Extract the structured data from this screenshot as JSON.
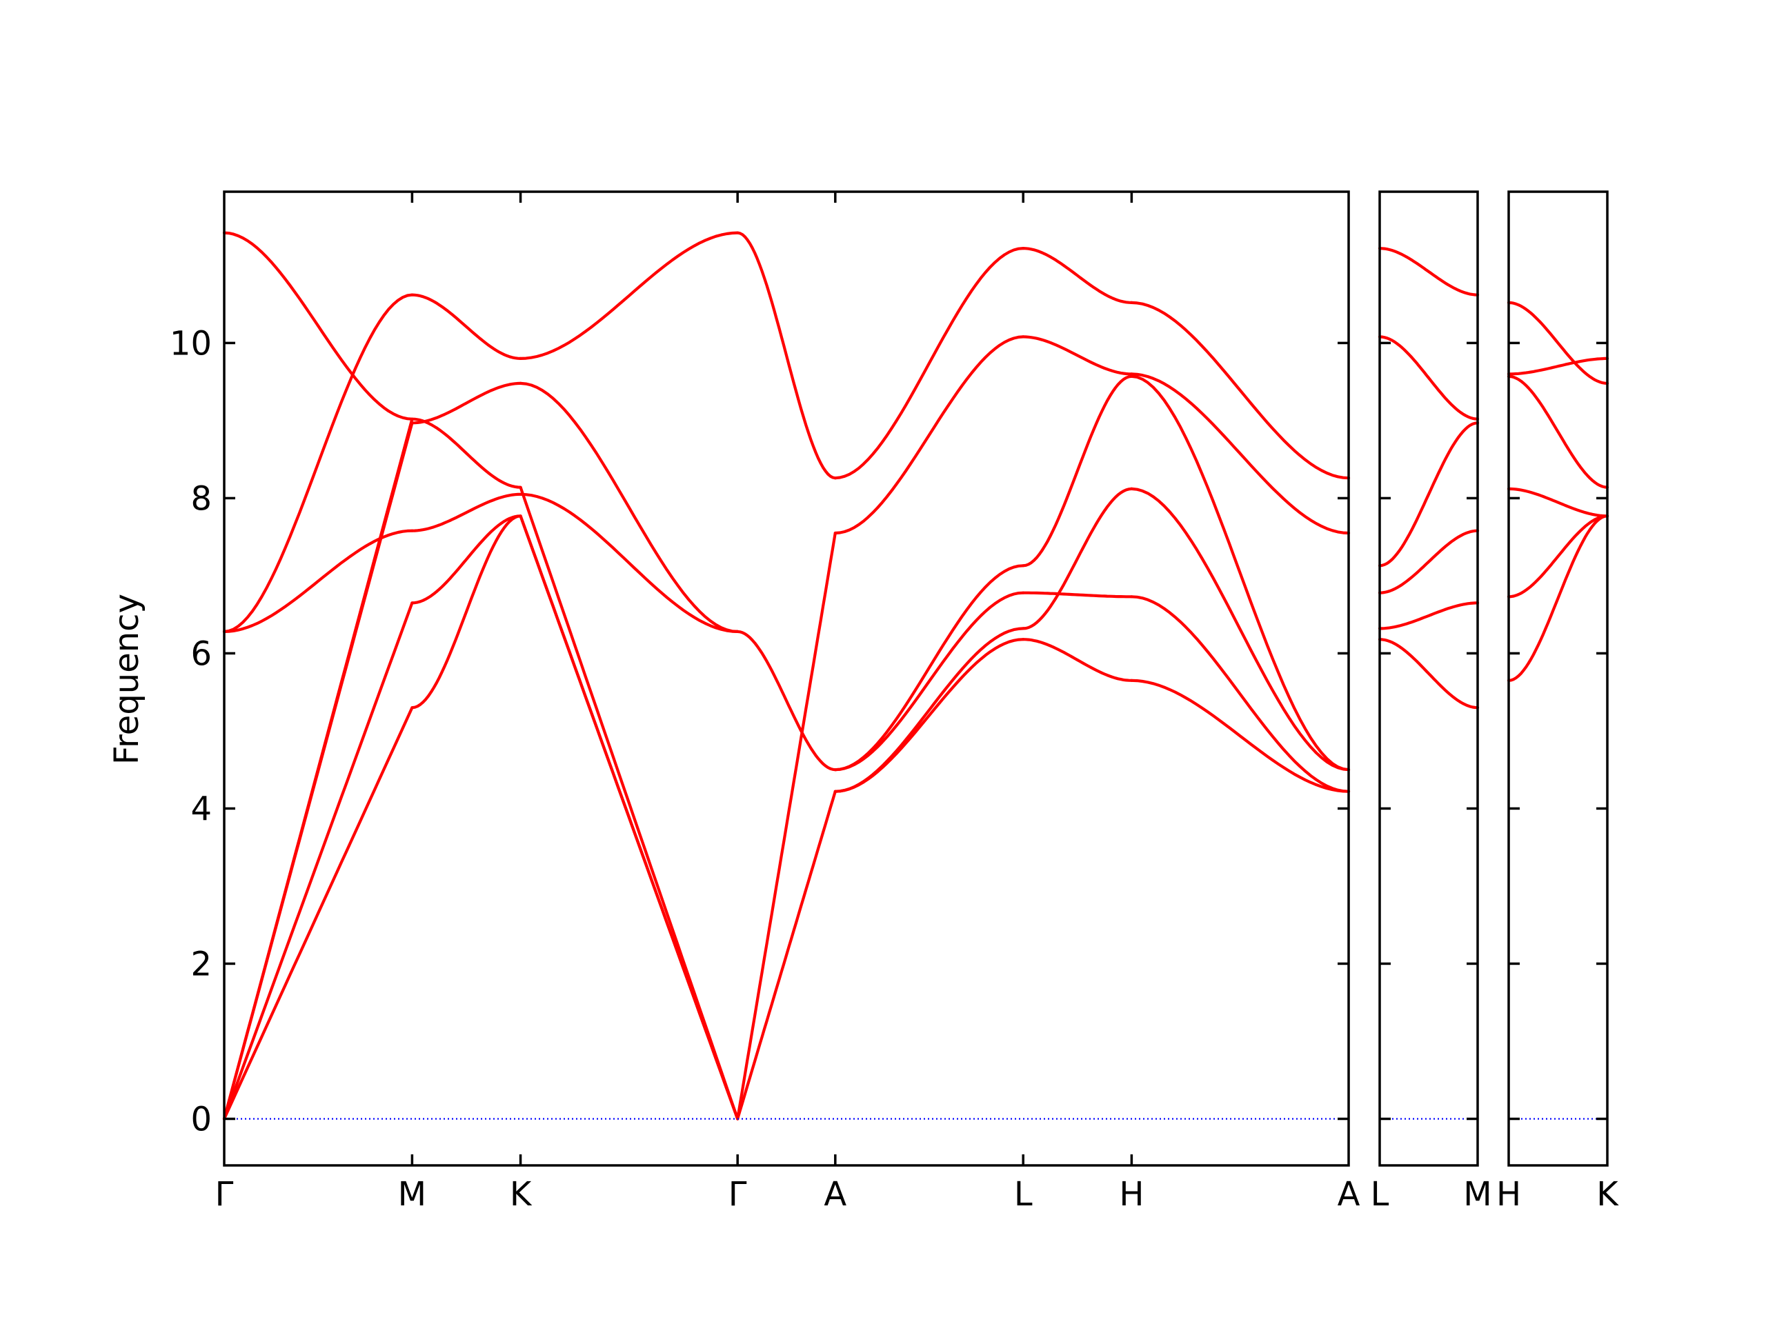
{
  "chart_data": {
    "type": "line",
    "ylabel": "Frequency",
    "ylim": [
      -0.6,
      11.95
    ],
    "yticks": [
      0,
      2,
      4,
      6,
      8,
      10
    ],
    "grid": false,
    "band_color": "#ff0000",
    "zero_line_color": "#0000ff",
    "panels": [
      {
        "path_labels": [
          "Γ",
          "M",
          "K",
          "Γ",
          "A",
          "L",
          "H",
          "A"
        ],
        "segments": [
          {
            "from": "Γ",
            "to": "M",
            "length": 1.0,
            "bands": [
              [
                0,
                5.3
              ],
              [
                0,
                6.65
              ],
              [
                0,
                8.97
              ],
              [
                0,
                9.02
              ],
              [
                6.28,
                7.58
              ],
              [
                6.28,
                10.62
              ],
              [
                11.42,
                9.02
              ]
            ]
          },
          {
            "from": "M",
            "to": "K",
            "length": 0.577,
            "bands": [
              [
                5.3,
                7.77
              ],
              [
                6.65,
                7.77
              ],
              [
                7.58,
                8.05
              ],
              [
                8.97,
                9.48
              ],
              [
                9.02,
                8.14
              ],
              [
                10.62,
                9.8
              ]
            ]
          },
          {
            "from": "K",
            "to": "Γ",
            "length": 1.155,
            "bands": [
              [
                7.77,
                0
              ],
              [
                7.77,
                0
              ],
              [
                8.14,
                0
              ],
              [
                8.05,
                6.28
              ],
              [
                9.48,
                6.28
              ],
              [
                9.8,
                11.42
              ]
            ]
          },
          {
            "from": "Γ",
            "to": "A",
            "length": 0.52,
            "bands": [
              [
                0,
                4.22
              ],
              [
                0,
                7.55
              ],
              [
                6.28,
                4.5
              ],
              [
                11.42,
                8.26
              ]
            ]
          },
          {
            "from": "A",
            "to": "L",
            "length": 1.0,
            "bands": [
              [
                4.22,
                6.18
              ],
              [
                4.22,
                6.32
              ],
              [
                4.5,
                6.78
              ],
              [
                4.5,
                7.13
              ],
              [
                7.55,
                10.08
              ],
              [
                8.26,
                11.22
              ]
            ]
          },
          {
            "from": "L",
            "to": "H",
            "length": 0.577,
            "bands": [
              [
                6.18,
                5.65
              ],
              [
                6.32,
                8.12
              ],
              [
                6.78,
                6.73
              ],
              [
                7.13,
                9.57
              ],
              [
                10.08,
                9.6
              ],
              [
                11.22,
                10.52
              ]
            ]
          },
          {
            "from": "H",
            "to": "A",
            "length": 1.155,
            "bands": [
              [
                5.65,
                4.22
              ],
              [
                6.73,
                4.22
              ],
              [
                8.12,
                4.5
              ],
              [
                9.57,
                4.5
              ],
              [
                9.6,
                7.55
              ],
              [
                10.52,
                8.26
              ]
            ]
          }
        ]
      },
      {
        "path_labels": [
          "L",
          "M"
        ],
        "segments": [
          {
            "from": "L",
            "to": "M",
            "length": 0.52,
            "bands": [
              [
                6.18,
                5.3
              ],
              [
                6.32,
                6.65
              ],
              [
                6.78,
                7.58
              ],
              [
                7.13,
                8.97
              ],
              [
                10.08,
                9.02
              ],
              [
                11.22,
                10.62
              ]
            ]
          }
        ]
      },
      {
        "path_labels": [
          "H",
          "K"
        ],
        "segments": [
          {
            "from": "H",
            "to": "K",
            "length": 0.52,
            "bands": [
              [
                5.65,
                7.77
              ],
              [
                6.73,
                7.77
              ],
              [
                8.12,
                7.77
              ],
              [
                9.57,
                8.14
              ],
              [
                9.6,
                9.8
              ],
              [
                10.52,
                9.48
              ]
            ]
          }
        ]
      }
    ]
  }
}
